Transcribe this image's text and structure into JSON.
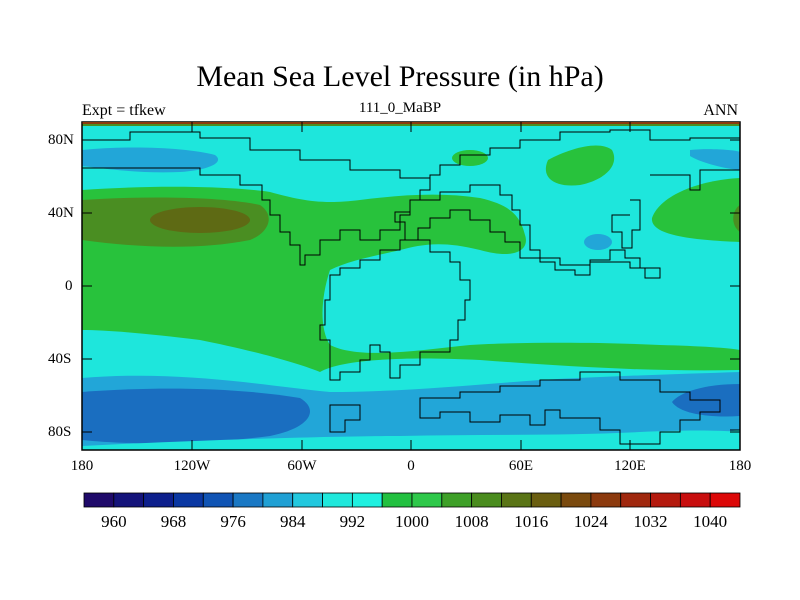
{
  "title": "Mean Sea Level Pressure (in hPa)",
  "left_string": "Expt = tfkew",
  "center_string": "111_0_MaBP",
  "right_string": "ANN",
  "lat_labels": [
    "80N",
    "40N",
    "0",
    "40S",
    "80S"
  ],
  "lon_labels": [
    "180",
    "120W",
    "60W",
    "0",
    "60E",
    "120E",
    "180"
  ],
  "colorbar_labels": [
    "960",
    "968",
    "976",
    "984",
    "992",
    "1000",
    "1008",
    "1016",
    "1024",
    "1032",
    "1040"
  ],
  "colorbar_colors": [
    "#1f0a6a",
    "#14137a",
    "#0d1f8c",
    "#0a37a2",
    "#1054b4",
    "#1a78c4",
    "#20a0d4",
    "#22c8de",
    "#20e8dc",
    "#1ff0e0",
    "#22c040",
    "#2ec84a",
    "#3ea028",
    "#4a8c1e",
    "#5a7416",
    "#6a5e10",
    "#7a4a0e",
    "#8c3a0e",
    "#a0280e",
    "#b41a0e",
    "#c80e0e",
    "#dc0808"
  ],
  "colors": {
    "cyan": "#1ee6dc",
    "green": "#28c23c",
    "light_blue": "#22a6d8",
    "blue": "#1a6ec0",
    "dark_green": "#4a8e22",
    "olive": "#5e6a14"
  }
}
